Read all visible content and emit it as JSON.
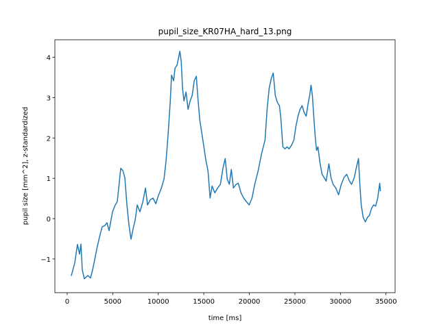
{
  "chart_data": {
    "type": "line",
    "title": "pupil_size_KR07HA_hard_13.png",
    "x_label": "time [ms]",
    "y_label": "pupil size [mm^2], z-standardized",
    "color": "#1f77b4",
    "xlim": [
      -1350,
      36000
    ],
    "ylim": [
      -1.835,
      4.435
    ],
    "xticks": [
      0,
      5000,
      10000,
      15000,
      20000,
      25000,
      30000,
      35000
    ],
    "yticks": [
      {
        "value": -1,
        "label": "−1"
      },
      0,
      1,
      2,
      3,
      4
    ],
    "x": [
      450,
      830,
      1130,
      1360,
      1510,
      1660,
      1885,
      2260,
      2560,
      2790,
      3020,
      3240,
      3620,
      3850,
      4150,
      4370,
      4600,
      4980,
      5280,
      5500,
      5660,
      5880,
      6110,
      6330,
      6560,
      6790,
      7010,
      7240,
      7470,
      7690,
      7990,
      8300,
      8600,
      8820,
      9130,
      9430,
      9730,
      10030,
      10330,
      10630,
      10860,
      11090,
      11310,
      11460,
      11690,
      11840,
      12070,
      12220,
      12370,
      12520,
      12670,
      12820,
      13050,
      13270,
      13500,
      13720,
      13950,
      14180,
      14330,
      14550,
      14780,
      15010,
      15230,
      15460,
      15690,
      15910,
      16210,
      16520,
      16820,
      17120,
      17350,
      17570,
      17800,
      18020,
      18250,
      18550,
      18780,
      19080,
      19380,
      19680,
      19980,
      20290,
      20590,
      20970,
      21340,
      21720,
      21950,
      22170,
      22400,
      22620,
      22850,
      23080,
      23300,
      23450,
      23680,
      23910,
      24130,
      24360,
      24660,
      24890,
      25110,
      25340,
      25570,
      25790,
      26020,
      26240,
      26470,
      26620,
      26770,
      26920,
      27070,
      27230,
      27380,
      27530,
      27750,
      27980,
      28200,
      28430,
      28730,
      28960,
      29190,
      29490,
      29790,
      30090,
      30390,
      30690,
      30990,
      31220,
      31520,
      31750,
      31980,
      32130,
      32280,
      32500,
      32730,
      32960,
      33180,
      33410,
      33640,
      33860,
      34090,
      34310,
      34390
    ],
    "values": [
      -1.42,
      -1.1,
      -0.64,
      -0.88,
      -0.63,
      -1.27,
      -1.49,
      -1.41,
      -1.47,
      -1.27,
      -1.02,
      -0.76,
      -0.39,
      -0.2,
      -0.17,
      -0.1,
      -0.3,
      0.17,
      0.34,
      0.42,
      0.76,
      1.25,
      1.19,
      1.02,
      0.34,
      -0.17,
      -0.51,
      -0.25,
      -0.03,
      0.34,
      0.17,
      0.41,
      0.76,
      0.34,
      0.47,
      0.51,
      0.37,
      0.58,
      0.75,
      0.98,
      1.44,
      2.12,
      2.88,
      3.56,
      3.42,
      3.73,
      3.81,
      3.98,
      4.15,
      3.9,
      3.22,
      2.92,
      3.14,
      2.71,
      2.92,
      3.05,
      3.42,
      3.53,
      3.05,
      2.46,
      2.12,
      1.78,
      1.44,
      1.19,
      0.51,
      0.81,
      0.64,
      0.76,
      0.85,
      1.27,
      1.49,
      0.98,
      0.85,
      1.22,
      0.76,
      0.85,
      0.88,
      0.64,
      0.51,
      0.42,
      0.34,
      0.51,
      0.85,
      1.19,
      1.61,
      1.95,
      2.71,
      3.22,
      3.47,
      3.61,
      3.05,
      2.88,
      2.8,
      2.51,
      1.78,
      1.73,
      1.78,
      1.73,
      1.83,
      1.95,
      2.29,
      2.54,
      2.71,
      2.8,
      2.63,
      2.54,
      2.88,
      3.05,
      3.31,
      3.05,
      2.54,
      2.03,
      1.69,
      1.78,
      1.39,
      1.1,
      1.02,
      0.93,
      1.36,
      1.02,
      0.85,
      0.76,
      0.59,
      0.85,
      1.02,
      1.1,
      0.93,
      0.85,
      1.02,
      1.27,
      1.49,
      0.85,
      0.34,
      0.03,
      -0.08,
      0.03,
      0.08,
      0.25,
      0.34,
      0.31,
      0.51,
      0.88,
      0.68
    ]
  }
}
